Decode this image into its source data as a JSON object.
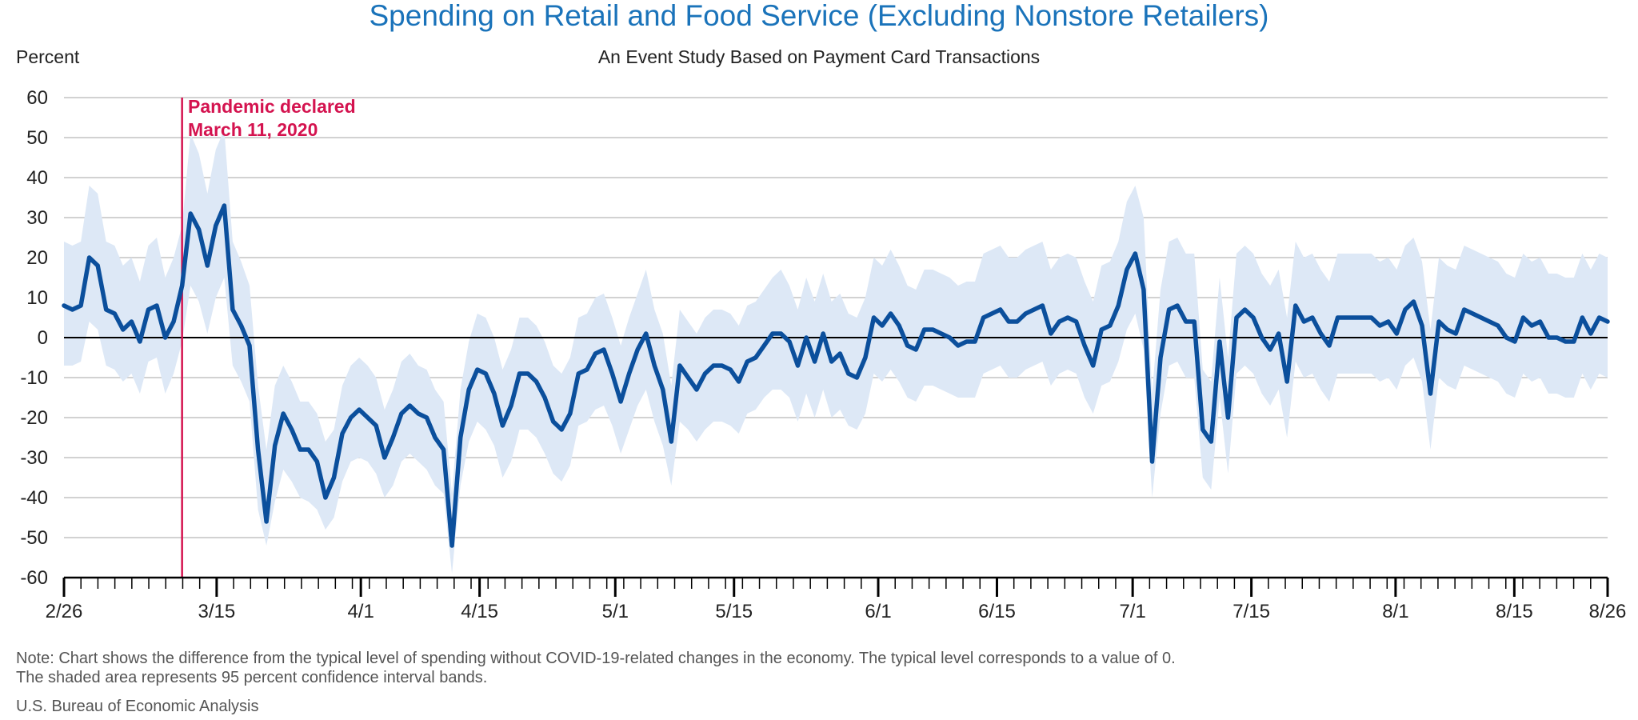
{
  "header": {
    "title": "Spending on Retail and Food Service (Excluding Nonstore Retailers)",
    "subtitle": "An Event Study Based on Payment Card Transactions",
    "ylabel": "Percent"
  },
  "annotation": {
    "line1": "Pandemic declared",
    "line2": "March 11, 2020",
    "day_index": 14
  },
  "footer": {
    "note_line1": "Note: Chart shows the difference from the typical level of spending without COVID-19-related changes in the economy. The typical level corresponds to a value of 0.",
    "note_line2": "The shaded area represents 95 percent confidence interval bands.",
    "source": "U.S. Bureau of Economic Analysis"
  },
  "colors": {
    "line": "#0b4f9c",
    "band": "#dde8f6",
    "grid": "#c4c4c4",
    "zero": "#000000",
    "event": "#d4134f",
    "title": "#1a73ba"
  },
  "chart_data": {
    "type": "line",
    "title": "Spending on Retail and Food Service (Excluding Nonstore Retailers)",
    "subtitle": "An Event Study Based on Payment Card Transactions",
    "xlabel": "",
    "ylabel": "Percent",
    "ylim": [
      -60,
      60
    ],
    "yticks": [
      60,
      50,
      40,
      30,
      20,
      10,
      0,
      -10,
      -20,
      -30,
      -40,
      -50,
      -60
    ],
    "x_start": "2020-02-26",
    "x_end": "2020-08-26",
    "xtick_labels": [
      {
        "label": "2/26",
        "day": 0
      },
      {
        "label": "3/15",
        "day": 18
      },
      {
        "label": "4/1",
        "day": 35
      },
      {
        "label": "4/15",
        "day": 49
      },
      {
        "label": "5/1",
        "day": 65
      },
      {
        "label": "5/15",
        "day": 79
      },
      {
        "label": "6/1",
        "day": 96
      },
      {
        "label": "6/15",
        "day": 110
      },
      {
        "label": "7/1",
        "day": 126
      },
      {
        "label": "7/15",
        "day": 140
      },
      {
        "label": "8/1",
        "day": 157
      },
      {
        "label": "8/15",
        "day": 171
      },
      {
        "label": "8/26",
        "day": 182
      }
    ],
    "grid": true,
    "series": [
      {
        "values": [
          8,
          7,
          8,
          20,
          18,
          7,
          6,
          2,
          4,
          -1,
          7,
          8,
          0,
          4,
          13,
          31,
          27,
          18,
          28,
          33,
          7,
          3,
          -2,
          -28,
          -46,
          -27,
          -19,
          -23,
          -28,
          -28,
          -31,
          -40,
          -35,
          -24,
          -20,
          -18,
          -20,
          -22,
          -30,
          -25,
          -19,
          -17,
          -19,
          -20,
          -25,
          -28,
          -52,
          -25,
          -13,
          -8,
          -9,
          -14,
          -22,
          -17,
          -9,
          -9,
          -11,
          -15,
          -21,
          -23,
          -19,
          -9,
          -8,
          -4,
          -3,
          -9,
          -16,
          -9,
          -3,
          1,
          -7,
          -13,
          -26,
          -7,
          -10,
          -13,
          -9,
          -7,
          -7,
          -8,
          -11,
          -6,
          -5,
          -2,
          1,
          1,
          -1,
          -7,
          0,
          -6,
          1,
          -6,
          -4,
          -9,
          -10,
          -5,
          5,
          3,
          6,
          3,
          -2,
          -3,
          2,
          2,
          1,
          0,
          -2,
          -1,
          -1,
          5,
          6,
          7,
          4,
          4,
          6,
          7,
          8,
          1,
          4,
          5,
          4,
          -2,
          -7,
          2,
          3,
          8,
          17,
          21,
          12,
          -31,
          -5,
          7,
          8,
          4,
          4,
          -23,
          -26,
          -1,
          -20,
          5,
          7,
          5,
          0,
          -3,
          1,
          -11,
          8,
          4,
          5,
          1,
          -2,
          5,
          5,
          5,
          5,
          5,
          3,
          4,
          1,
          7,
          9,
          3,
          -14,
          4,
          2,
          1,
          7,
          6,
          5,
          4,
          3,
          0,
          -1,
          5,
          3,
          4,
          0,
          0,
          -1,
          -1,
          5,
          1,
          5,
          4
        ]
      }
    ],
    "band_upper": [
      24,
      23,
      24,
      38,
      36,
      24,
      23,
      18,
      20,
      14,
      23,
      25,
      15,
      20,
      28,
      51,
      46,
      36,
      47,
      52,
      24,
      19,
      13,
      -12,
      -28,
      -12,
      -7,
      -11,
      -16,
      -16,
      -19,
      -26,
      -23,
      -12,
      -7,
      -5,
      -7,
      -10,
      -18,
      -13,
      -6,
      -4,
      -7,
      -8,
      -13,
      -16,
      -39,
      -13,
      -1,
      6,
      5,
      0,
      -8,
      -3,
      5,
      5,
      3,
      -1,
      -7,
      -9,
      -5,
      5,
      6,
      10,
      11,
      5,
      -2,
      5,
      11,
      17,
      7,
      1,
      -12,
      7,
      4,
      1,
      5,
      7,
      7,
      6,
      3,
      8,
      9,
      12,
      15,
      17,
      13,
      7,
      15,
      9,
      16,
      9,
      11,
      6,
      5,
      10,
      20,
      18,
      22,
      18,
      13,
      12,
      17,
      17,
      16,
      15,
      13,
      14,
      14,
      21,
      22,
      23,
      20,
      20,
      22,
      23,
      24,
      17,
      20,
      21,
      20,
      14,
      9,
      18,
      19,
      24,
      34,
      38,
      30,
      -14,
      12,
      24,
      25,
      21,
      21,
      -8,
      -11,
      15,
      -5,
      21,
      23,
      21,
      16,
      13,
      17,
      5,
      24,
      20,
      21,
      17,
      14,
      21,
      21,
      21,
      21,
      21,
      19,
      20,
      17,
      23,
      25,
      19,
      2,
      20,
      18,
      17,
      23,
      22,
      21,
      20,
      19,
      16,
      15,
      21,
      19,
      20,
      16,
      16,
      15,
      15,
      21,
      17,
      21,
      20
    ],
    "band_lower": [
      -7,
      -7,
      -6,
      4,
      2,
      -7,
      -8,
      -11,
      -9,
      -14,
      -6,
      -5,
      -14,
      -9,
      -1,
      13,
      9,
      1,
      10,
      15,
      -7,
      -11,
      -16,
      -43,
      -52,
      -41,
      -33,
      -36,
      -40,
      -41,
      -43,
      -48,
      -45,
      -36,
      -31,
      -30,
      -31,
      -34,
      -40,
      -37,
      -31,
      -29,
      -31,
      -33,
      -37,
      -39,
      -59,
      -37,
      -26,
      -21,
      -23,
      -27,
      -35,
      -31,
      -23,
      -23,
      -25,
      -29,
      -34,
      -36,
      -32,
      -22,
      -21,
      -18,
      -17,
      -22,
      -29,
      -23,
      -17,
      -13,
      -21,
      -27,
      -37,
      -21,
      -23,
      -26,
      -23,
      -21,
      -21,
      -22,
      -24,
      -19,
      -18,
      -15,
      -13,
      -13,
      -15,
      -21,
      -14,
      -20,
      -13,
      -20,
      -18,
      -22,
      -23,
      -19,
      -9,
      -11,
      -8,
      -11,
      -15,
      -16,
      -12,
      -12,
      -13,
      -14,
      -15,
      -15,
      -15,
      -9,
      -8,
      -7,
      -10,
      -10,
      -8,
      -7,
      -6,
      -12,
      -9,
      -8,
      -9,
      -15,
      -19,
      -12,
      -11,
      -6,
      2,
      6,
      -3,
      -40,
      -19,
      -7,
      -6,
      -10,
      -10,
      -35,
      -38,
      -15,
      -34,
      -9,
      -7,
      -9,
      -14,
      -17,
      -13,
      -25,
      -6,
      -10,
      -9,
      -13,
      -16,
      -9,
      -9,
      -9,
      -9,
      -9,
      -11,
      -10,
      -13,
      -7,
      -5,
      -11,
      -28,
      -10,
      -12,
      -13,
      -7,
      -8,
      -9,
      -10,
      -11,
      -14,
      -15,
      -9,
      -11,
      -10,
      -14,
      -14,
      -15,
      -15,
      -9,
      -13,
      -9,
      -10
    ]
  }
}
